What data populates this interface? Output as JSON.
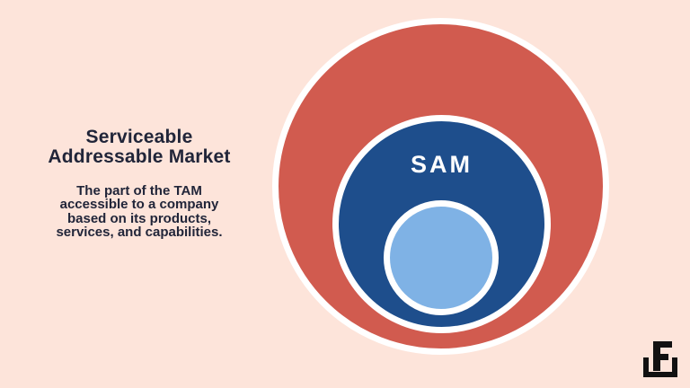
{
  "background_color": "#fde4da",
  "panel": {
    "title_lines": [
      "Serviceable",
      "Addressable Market"
    ],
    "description_lines": [
      "The part of the TAM",
      "accessible to a company",
      "based on its products,",
      "services, and capabilities."
    ],
    "text_color": "#212539"
  },
  "diagram": {
    "sam_label": "SAM",
    "sam_label_color": "#ffffff",
    "ring_color": "#ffffff",
    "circles": [
      {
        "id": "outer-circle",
        "fill": "#d15b4f"
      },
      {
        "id": "middle-circle",
        "fill": "#1e4e8c"
      },
      {
        "id": "inner-circle",
        "fill": "#7fb2e5"
      }
    ]
  },
  "logo": {
    "letter": "F",
    "color": "#111111"
  }
}
